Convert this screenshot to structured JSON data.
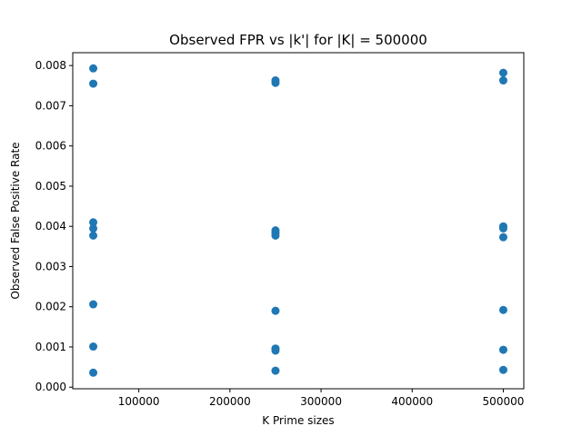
{
  "chart_data": {
    "type": "scatter",
    "title": "Observed FPR vs |k'| for |K| = 500000",
    "xlabel": "K Prime sizes",
    "ylabel": "Observed False Positive Rate",
    "xlim": [
      27500,
      522500
    ],
    "ylim": [
      -4e-05,
      0.00832
    ],
    "xticks": [
      100000,
      200000,
      300000,
      400000,
      500000
    ],
    "xtick_labels": [
      "100000",
      "200000",
      "300000",
      "400000",
      "500000"
    ],
    "yticks": [
      0.0,
      0.001,
      0.002,
      0.003,
      0.004,
      0.005,
      0.006,
      0.007,
      0.008
    ],
    "ytick_labels": [
      "0.000",
      "0.001",
      "0.002",
      "0.003",
      "0.004",
      "0.005",
      "0.006",
      "0.007",
      "0.008"
    ],
    "grid": false,
    "color": "#1f77b4",
    "series": [
      {
        "points": [
          {
            "x": 50000,
            "y": 0.00793
          },
          {
            "x": 50000,
            "y": 0.00755
          },
          {
            "x": 50000,
            "y": 0.0041
          },
          {
            "x": 50000,
            "y": 0.00395
          },
          {
            "x": 50000,
            "y": 0.00377
          },
          {
            "x": 50000,
            "y": 0.00206
          },
          {
            "x": 50000,
            "y": 0.00101
          },
          {
            "x": 50000,
            "y": 0.00036
          },
          {
            "x": 250000,
            "y": 0.00763
          },
          {
            "x": 250000,
            "y": 0.00757
          },
          {
            "x": 250000,
            "y": 0.0039
          },
          {
            "x": 250000,
            "y": 0.00383
          },
          {
            "x": 250000,
            "y": 0.00377
          },
          {
            "x": 250000,
            "y": 0.0019
          },
          {
            "x": 250000,
            "y": 0.00096
          },
          {
            "x": 250000,
            "y": 0.00091
          },
          {
            "x": 250000,
            "y": 0.00041
          },
          {
            "x": 500000,
            "y": 0.00782
          },
          {
            "x": 500000,
            "y": 0.00763
          },
          {
            "x": 500000,
            "y": 0.004
          },
          {
            "x": 500000,
            "y": 0.00395
          },
          {
            "x": 500000,
            "y": 0.00373
          },
          {
            "x": 500000,
            "y": 0.00192
          },
          {
            "x": 500000,
            "y": 0.00093
          },
          {
            "x": 500000,
            "y": 0.00043
          }
        ]
      }
    ]
  }
}
